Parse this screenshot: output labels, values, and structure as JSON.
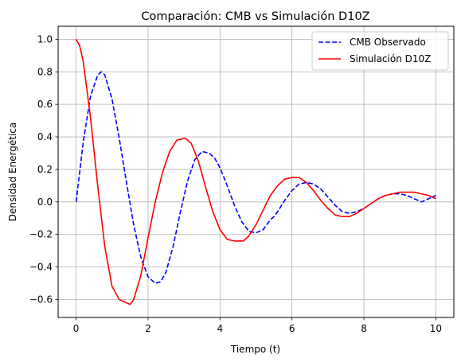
{
  "chart_data": {
    "type": "line",
    "title": "Comparación: CMB vs Simulación D10Z",
    "xlabel": "Tiempo (t)",
    "ylabel": "Densidad Energética",
    "xlim": [
      -0.5,
      10.5
    ],
    "ylim": [
      -0.71,
      1.08
    ],
    "xticks": [
      0,
      2,
      4,
      6,
      8,
      10
    ],
    "xtick_labels": [
      "0",
      "2",
      "4",
      "6",
      "8",
      "10"
    ],
    "yticks": [
      -0.6,
      -0.4,
      -0.2,
      0.0,
      0.2,
      0.4,
      0.6,
      0.8,
      1.0
    ],
    "ytick_labels": [
      "−0.6",
      "−0.4",
      "−0.2",
      "0.0",
      "0.2",
      "0.4",
      "0.6",
      "0.8",
      "1.0"
    ],
    "grid": true,
    "legend_position": "top-right",
    "series": [
      {
        "name": "CMB Observado",
        "color": "#0000ff",
        "style": "dashed",
        "x": [
          0,
          0.2,
          0.4,
          0.6,
          0.7,
          0.8,
          1.0,
          1.2,
          1.4,
          1.6,
          1.8,
          2.0,
          2.2,
          2.35,
          2.5,
          2.7,
          2.9,
          3.1,
          3.3,
          3.5,
          3.7,
          3.85,
          4.0,
          4.2,
          4.4,
          4.6,
          4.8,
          5.0,
          5.2,
          5.4,
          5.5,
          5.6,
          5.8,
          6.0,
          6.2,
          6.4,
          6.6,
          6.8,
          7.0,
          7.2,
          7.4,
          7.6,
          7.8,
          8.0,
          8.2,
          8.4,
          8.6,
          8.8,
          9.0,
          9.2,
          9.4,
          9.6,
          9.8,
          10.0
        ],
        "y": [
          0.0,
          0.37,
          0.65,
          0.78,
          0.8,
          0.78,
          0.63,
          0.39,
          0.12,
          -0.14,
          -0.34,
          -0.46,
          -0.5,
          -0.49,
          -0.43,
          -0.27,
          -0.06,
          0.13,
          0.26,
          0.31,
          0.3,
          0.27,
          0.21,
          0.1,
          -0.02,
          -0.12,
          -0.18,
          -0.19,
          -0.17,
          -0.11,
          -0.09,
          -0.06,
          0.01,
          0.07,
          0.11,
          0.12,
          0.11,
          0.08,
          0.03,
          -0.02,
          -0.06,
          -0.07,
          -0.06,
          -0.04,
          -0.01,
          0.02,
          0.04,
          0.05,
          0.05,
          0.04,
          0.02,
          0.0,
          0.02,
          0.04
        ]
      },
      {
        "name": "Simulación D10Z",
        "color": "#ff0000",
        "style": "solid",
        "x": [
          0,
          0.1,
          0.2,
          0.4,
          0.6,
          0.8,
          1.0,
          1.2,
          1.4,
          1.5,
          1.6,
          1.8,
          2.0,
          2.2,
          2.4,
          2.6,
          2.8,
          3.0,
          3.05,
          3.2,
          3.4,
          3.6,
          3.8,
          4.0,
          4.2,
          4.4,
          4.6,
          4.65,
          4.8,
          5.0,
          5.2,
          5.4,
          5.6,
          5.8,
          6.0,
          6.2,
          6.4,
          6.6,
          6.8,
          7.0,
          7.2,
          7.4,
          7.6,
          7.8,
          8.0,
          8.2,
          8.4,
          8.6,
          8.8,
          9.0,
          9.2,
          9.4,
          9.6,
          9.8,
          10.0
        ],
        "y": [
          1.0,
          0.96,
          0.86,
          0.52,
          0.1,
          -0.28,
          -0.52,
          -0.6,
          -0.62,
          -0.63,
          -0.6,
          -0.45,
          -0.22,
          0.0,
          0.18,
          0.31,
          0.38,
          0.39,
          0.39,
          0.36,
          0.25,
          0.09,
          -0.06,
          -0.17,
          -0.23,
          -0.24,
          -0.24,
          -0.24,
          -0.21,
          -0.14,
          -0.05,
          0.04,
          0.1,
          0.14,
          0.15,
          0.15,
          0.12,
          0.07,
          0.01,
          -0.04,
          -0.08,
          -0.09,
          -0.09,
          -0.07,
          -0.04,
          -0.01,
          0.02,
          0.04,
          0.05,
          0.06,
          0.06,
          0.06,
          0.05,
          0.04,
          0.02
        ]
      }
    ]
  }
}
